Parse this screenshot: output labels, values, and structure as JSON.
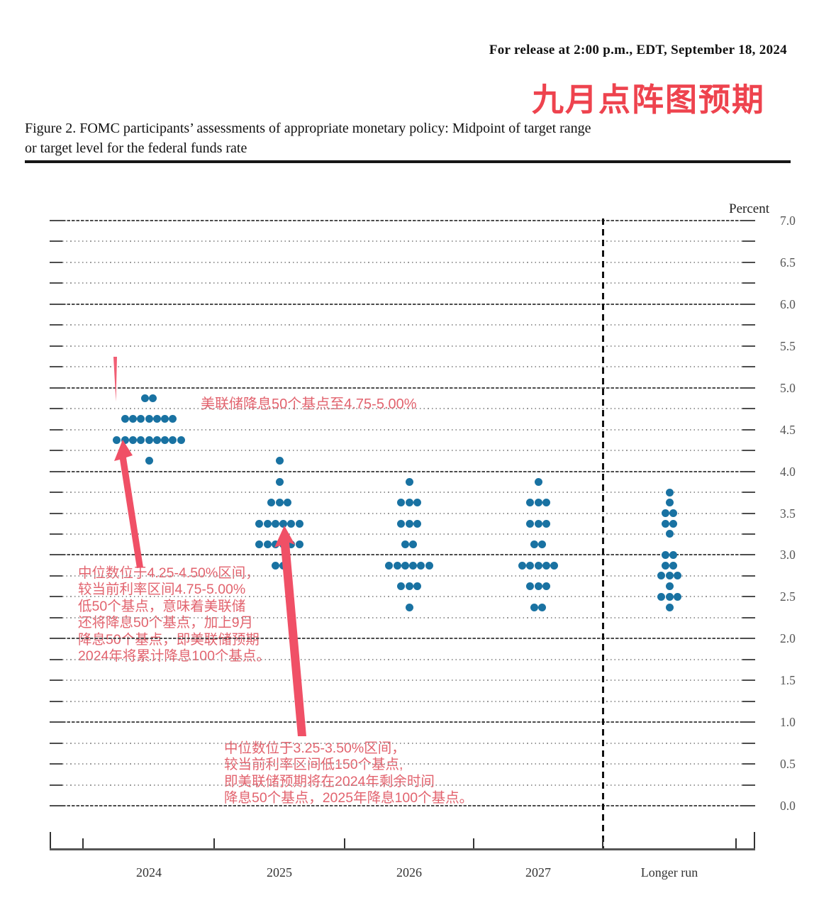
{
  "header": {
    "release_line": "For release at 2:00 p.m., EDT, September 18, 2024",
    "headline": "九月点阵图预期"
  },
  "figure": {
    "caption_lines": [
      "Figure 2.  FOMC participants’ assessments of appropriate monetary policy:  Midpoint of target range",
      "or target level for the federal funds rate"
    ]
  },
  "chart_data": {
    "type": "scatter",
    "subtype": "fomc-dot-plot",
    "unit_label": "Percent",
    "ylim": [
      0.0,
      7.0
    ],
    "grid_step": 0.25,
    "ytick_step": 0.5,
    "ytick_labels": [
      "7.0",
      "6.5",
      "6.0",
      "5.5",
      "5.0",
      "4.5",
      "4.0",
      "3.5",
      "3.0",
      "2.5",
      "2.0",
      "1.5",
      "1.0",
      "0.5",
      "0.0"
    ],
    "categories": [
      "2024",
      "2025",
      "2026",
      "2027",
      "Longer run"
    ],
    "series": [
      {
        "category": "2024",
        "dots": [
          {
            "value": 4.875,
            "count": 2
          },
          {
            "value": 4.625,
            "count": 7
          },
          {
            "value": 4.375,
            "count": 9
          },
          {
            "value": 4.125,
            "count": 1
          }
        ]
      },
      {
        "category": "2025",
        "dots": [
          {
            "value": 4.125,
            "count": 1
          },
          {
            "value": 3.875,
            "count": 1
          },
          {
            "value": 3.625,
            "count": 3
          },
          {
            "value": 3.375,
            "count": 6
          },
          {
            "value": 3.125,
            "count": 6
          },
          {
            "value": 2.875,
            "count": 2
          }
        ]
      },
      {
        "category": "2026",
        "dots": [
          {
            "value": 3.875,
            "count": 1
          },
          {
            "value": 3.625,
            "count": 3
          },
          {
            "value": 3.375,
            "count": 3
          },
          {
            "value": 3.125,
            "count": 2
          },
          {
            "value": 2.875,
            "count": 6
          },
          {
            "value": 2.625,
            "count": 3
          },
          {
            "value": 2.375,
            "count": 1
          }
        ]
      },
      {
        "category": "2027",
        "dots": [
          {
            "value": 3.875,
            "count": 1
          },
          {
            "value": 3.625,
            "count": 3
          },
          {
            "value": 3.375,
            "count": 3
          },
          {
            "value": 3.125,
            "count": 2
          },
          {
            "value": 2.875,
            "count": 5
          },
          {
            "value": 2.625,
            "count": 3
          },
          {
            "value": 2.375,
            "count": 2
          }
        ]
      },
      {
        "category": "Longer run",
        "dots": [
          {
            "value": 3.75,
            "count": 1
          },
          {
            "value": 3.625,
            "count": 1
          },
          {
            "value": 3.5,
            "count": 2
          },
          {
            "value": 3.375,
            "count": 2
          },
          {
            "value": 3.25,
            "count": 1
          },
          {
            "value": 3.0,
            "count": 2
          },
          {
            "value": 2.875,
            "count": 2
          },
          {
            "value": 2.75,
            "count": 3
          },
          {
            "value": 2.625,
            "count": 1
          },
          {
            "value": 2.5,
            "count": 3
          },
          {
            "value": 2.375,
            "count": 1
          }
        ]
      }
    ],
    "legend": "none",
    "grid": "dotted horizontal every 0.25, darker at integers"
  },
  "annotations": {
    "cut_note": "美联储降息50个基点至4.75-5.00%",
    "median_2024_lines": [
      "中位数位于4.25-4.50%区间，",
      "较当前利率区间4.75-5.00%",
      "低50个基点，意味着美联储",
      "还将降息50个基点，加上9月",
      "降息50个基点，即美联储预期",
      "2024年将累计降息100个基点。"
    ],
    "median_2025_lines": [
      "中位数位于3.25-3.50%区间，",
      "较当前利率区间低150个基点,",
      "即美联储预期将在2024年剩余时间",
      "降息50个基点，2025年降息100个基点。"
    ]
  },
  "colors": {
    "dot": "#1972a2",
    "headline_red": "#ee434e",
    "annotation_red": "#e2636e",
    "arrow_red": "#f05066",
    "axis": "#555555",
    "grid_minor": "#9a9a9a",
    "grid_major": "#4d4d4d",
    "text": "#111111",
    "tick_label": "#555555"
  }
}
